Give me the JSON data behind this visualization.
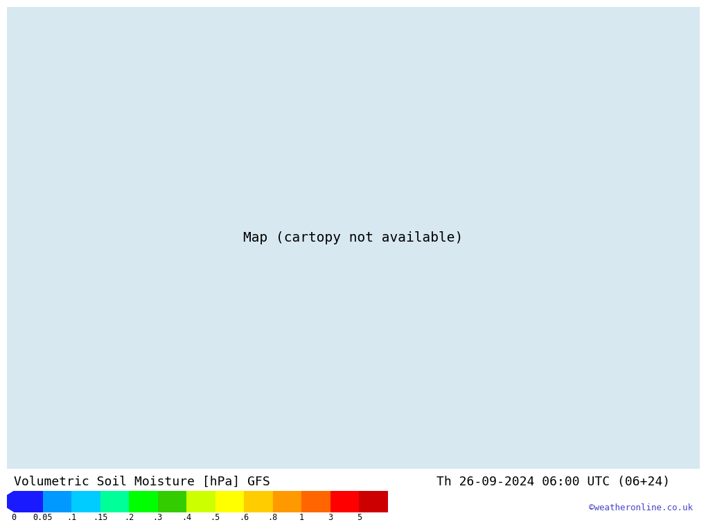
{
  "title_left": "Volumetric Soil Moisture [hPa] GFS",
  "title_right": "Th 26-09-2024 06:00 UTC (06+24)",
  "credit": "©weatheronline.co.uk",
  "colorbar_labels": [
    "0",
    "0.05",
    ".1",
    ".15",
    ".2",
    ".3",
    ".4",
    ".5",
    ".6",
    ".8",
    "1",
    "3",
    "5"
  ],
  "colorbar_values": [
    0,
    0.05,
    0.1,
    0.15,
    0.2,
    0.3,
    0.4,
    0.5,
    0.6,
    0.8,
    1.0,
    3.0,
    5.0
  ],
  "colorbar_colors": [
    "#1a1aff",
    "#0099ff",
    "#00ccff",
    "#00ff99",
    "#00ff00",
    "#33cc00",
    "#ccff00",
    "#ffff00",
    "#ffcc00",
    "#ff9900",
    "#ff6600",
    "#ff0000",
    "#cc0000"
  ],
  "bg_color": "#f0f0f0",
  "map_bg": "#d8e8f0",
  "title_fontsize": 13,
  "credit_fontsize": 9,
  "label_fontsize": 10,
  "font_family": "monospace"
}
